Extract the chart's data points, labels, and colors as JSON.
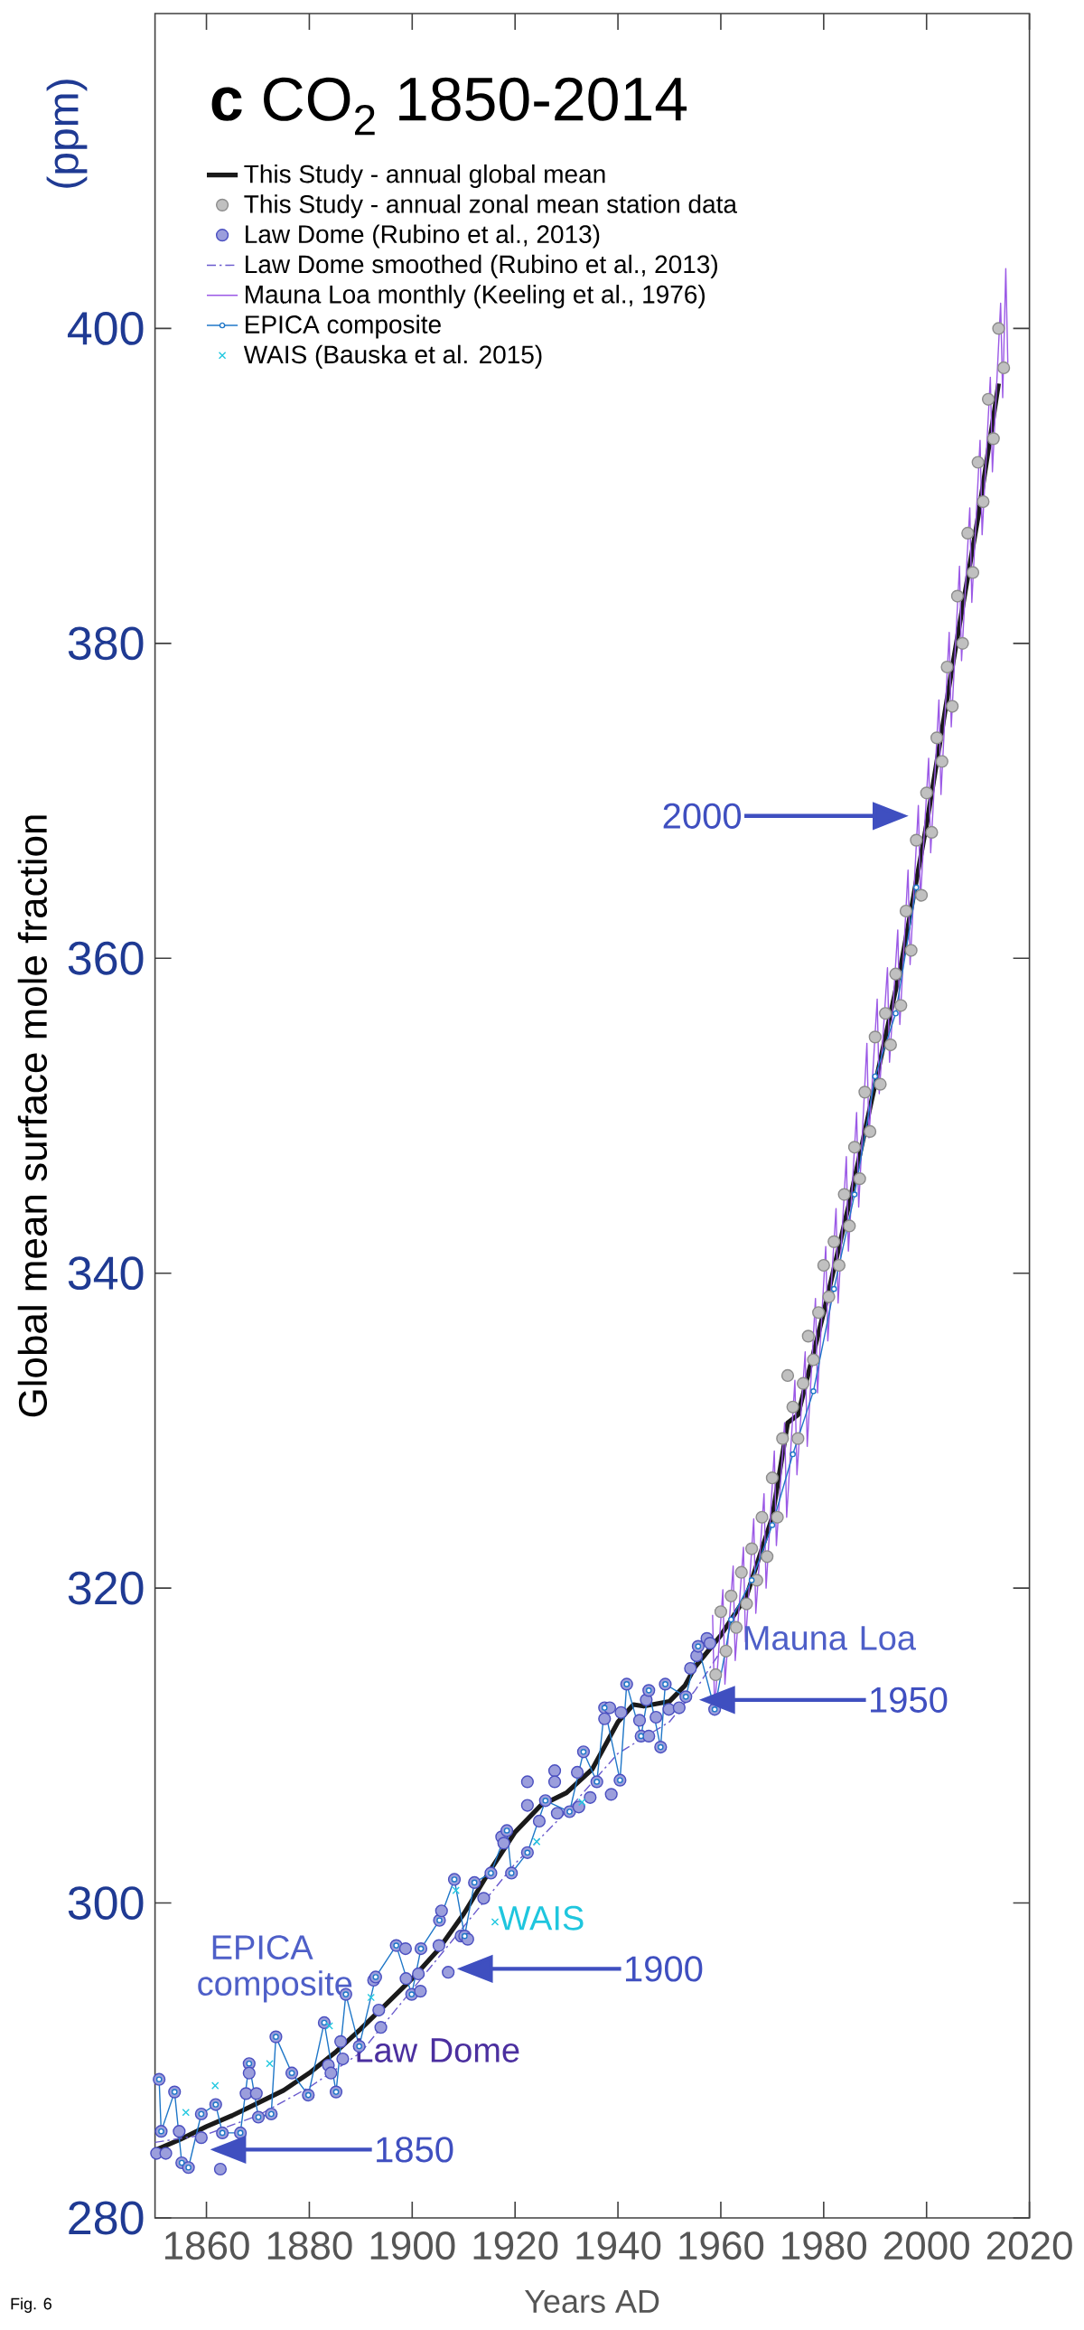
{
  "chart_data": {
    "type": "line",
    "title": "**c** CO$_{2}$ 1850-2014",
    "xlabel": "Years AD",
    "ylabel": "Global mean surface mole fraction",
    "xlim": [
      1850,
      2020
    ],
    "xticks": [
      1860,
      1880,
      1900,
      1920,
      1940,
      1960,
      1980,
      2000,
      2020
    ],
    "ylim": [
      280,
      420
    ],
    "yticks": [
      280,
      300,
      320,
      340,
      360,
      380,
      400
    ],
    "legend": "top left",
    "series": [
      {
        "name": "This Study - annual global mean",
        "color": "#1a1a1a",
        "marker": "none",
        "line_style": "solid",
        "x": [
          1850,
          1855,
          1860,
          1865,
          1870,
          1875,
          1880,
          1885,
          1890,
          1895,
          1900,
          1905,
          1910,
          1915,
          1920,
          1925,
          1930,
          1935,
          1940,
          1943,
          1945,
          1950,
          1953,
          1955,
          1960,
          1965,
          1970,
          1973,
          1975,
          1980,
          1985,
          1990,
          1993,
          1995,
          2000,
          2005,
          2010,
          2014
        ],
        "values": [
          284.3,
          285.0,
          285.8,
          286.5,
          287.3,
          288.1,
          289.2,
          290.5,
          292.0,
          293.6,
          295.2,
          297.0,
          299.3,
          302.0,
          304.5,
          306.2,
          307.0,
          308.5,
          311.5,
          312.6,
          312.5,
          312.8,
          313.8,
          315.0,
          317.0,
          319.5,
          324.5,
          330.5,
          331.0,
          337.5,
          344.5,
          352.0,
          356.5,
          359.5,
          368.5,
          378.5,
          388.0,
          396.5
        ]
      },
      {
        "name": "This Study - annual zonal mean station data",
        "type": "scatter",
        "color": "#8c8c8c",
        "marker": "circle",
        "x": [
          1959,
          1960,
          1961,
          1962,
          1963,
          1964,
          1965,
          1966,
          1967,
          1968,
          1969,
          1970,
          1971,
          1972,
          1973,
          1974,
          1975,
          1976,
          1977,
          1978,
          1979,
          1980,
          1981,
          1982,
          1983,
          1984,
          1985,
          1986,
          1987,
          1988,
          1989,
          1990,
          1991,
          1992,
          1993,
          1994,
          1995,
          1996,
          1997,
          1998,
          1999,
          2000,
          2001,
          2002,
          2003,
          2004,
          2005,
          2006,
          2007,
          2008,
          2009,
          2010,
          2011,
          2012,
          2013,
          2014,
          2015
        ],
        "values": [
          314.5,
          318.5,
          316.0,
          319.5,
          317.5,
          321.0,
          319.0,
          322.5,
          320.5,
          324.5,
          322.0,
          327.0,
          324.5,
          329.5,
          333.5,
          331.5,
          329.5,
          333.0,
          336.0,
          334.5,
          337.5,
          340.5,
          338.5,
          342.0,
          340.5,
          345.0,
          343.0,
          348.0,
          346.0,
          351.5,
          349.0,
          355.0,
          352.0,
          356.5,
          354.5,
          359.0,
          357.0,
          363.0,
          360.5,
          367.5,
          364.0,
          370.5,
          368.0,
          374.0,
          372.5,
          378.5,
          376.0,
          383.0,
          380.0,
          387.0,
          384.5,
          391.5,
          389.0,
          395.5,
          393.0,
          400.0,
          397.5
        ]
      },
      {
        "name": "Law Dome (Rubino et al., 2013)",
        "type": "scatter",
        "color": "#4a4fc0",
        "marker": "circle",
        "x": [
          1850.3,
          1850.8,
          1851.2,
          1852.1,
          1853.8,
          1854.7,
          1855.2,
          1856.5,
          1859.0,
          1859.0,
          1861.8,
          1862.7,
          1863.1,
          1866.6,
          1867.7,
          1868.3,
          1868.3,
          1869.7,
          1870.1,
          1872.6,
          1873.5,
          1876.6,
          1879.8,
          1882.9,
          1883.7,
          1884.2,
          1885.2,
          1886.1,
          1886.5,
          1887.1,
          1889.7,
          1892.5,
          1892.9,
          1893.5,
          1893.9,
          1896.9,
          1898.7,
          1898.8,
          1899.9,
          1901.2,
          1901.6,
          1901.7,
          1905.2,
          1905.3,
          1905.7,
          1907.0,
          1908.2,
          1909.5,
          1910.2,
          1910.8,
          1912.1,
          1913.9,
          1915.3,
          1917.4,
          1917.8,
          1918.4,
          1919.3,
          1922.4,
          1922.4,
          1922.4,
          1924.7,
          1925.9,
          1927.7,
          1927.7,
          1928.2,
          1930.6,
          1932.1,
          1932.4,
          1933.3,
          1934.6,
          1935.9,
          1937.4,
          1937.4,
          1938.4,
          1938.7,
          1940.4,
          1940.6,
          1941.7,
          1944.2,
          1944.5,
          1945.5,
          1946.0,
          1946.0,
          1947.4,
          1948.3,
          1949.2,
          1949.9,
          1951.9,
          1953.2,
          1954.1,
          1955.3,
          1955.6,
          1957.3,
          1957.9,
          1958.8
        ],
        "values": [
          284.1,
          288.8,
          285.5,
          284.1,
          288.0,
          285.5,
          283.5,
          283.2,
          285.1,
          286.6,
          287.2,
          283.1,
          285.4,
          285.4,
          287.9,
          289.8,
          289.2,
          287.9,
          286.4,
          286.6,
          291.5,
          289.2,
          287.8,
          292.4,
          289.7,
          289.2,
          288.0,
          291.2,
          290.1,
          294.2,
          290.9,
          295.1,
          295.3,
          293.2,
          292.1,
          297.3,
          297.1,
          295.2,
          294.2,
          295.5,
          294.4,
          297.1,
          297.3,
          298.9,
          299.5,
          295.6,
          301.5,
          297.9,
          297.9,
          297.7,
          301.3,
          300.3,
          301.9,
          304.2,
          303.8,
          304.6,
          301.9,
          307.7,
          303.2,
          306.2,
          305.2,
          306.5,
          308.4,
          307.7,
          305.7,
          305.8,
          308.3,
          306.1,
          309.6,
          306.7,
          307.7,
          312.4,
          311.7,
          312.4,
          306.9,
          307.8,
          312.1,
          313.9,
          311.6,
          310.6,
          312.9,
          313.5,
          310.6,
          311.8,
          309.9,
          313.9,
          312.3,
          312.4,
          313.1,
          314.9,
          315.7,
          316.3,
          316.8,
          316.5,
          312.3
        ]
      },
      {
        "name": "Law Dome smoothed (Rubino et al., 2013)",
        "color": "#6a5acd",
        "marker": "none",
        "line_style": "dashed",
        "x": [
          1850,
          1860,
          1870,
          1880,
          1890,
          1900,
          1910,
          1920,
          1930,
          1940,
          1950,
          1955,
          1960
        ],
        "values": [
          284.8,
          285.3,
          286.5,
          288.3,
          290.5,
          294.5,
          298.5,
          302.5,
          305.8,
          309.5,
          311.5,
          313.5,
          316.0
        ]
      },
      {
        "name": "Mauna Loa monthly (Keeling et al., 1976)",
        "color": "#9b59e6",
        "marker": "none",
        "line_style": "solid",
        "x": [
          1958.4,
          1958.8,
          1960.4,
          1960.8,
          1962.4,
          1962.8,
          1964.4,
          1964.8,
          1966.4,
          1966.8,
          1968.4,
          1968.8,
          1970.4,
          1970.8,
          1972.4,
          1972.8,
          1974.4,
          1974.8,
          1976.4,
          1976.8,
          1978.4,
          1978.8,
          1980.4,
          1980.8,
          1982.4,
          1982.8,
          1984.4,
          1984.8,
          1986.4,
          1986.8,
          1988.4,
          1988.8,
          1990.4,
          1990.8,
          1992.4,
          1992.8,
          1994.4,
          1994.8,
          1996.4,
          1996.8,
          1998.4,
          1998.8,
          2000.4,
          2000.8,
          2002.4,
          2002.8,
          2004.4,
          2004.8,
          2006.4,
          2006.8,
          2008.4,
          2008.8,
          2010.4,
          2010.8,
          2012.4,
          2012.8,
          2014.4,
          2014.8,
          2015.4,
          2015.8
        ],
        "values": [
          318.3,
          312.3,
          319.9,
          313.9,
          321.4,
          315.4,
          322.6,
          316.6,
          324.4,
          318.4,
          326.0,
          320.0,
          328.7,
          322.7,
          330.5,
          324.5,
          333.2,
          327.2,
          335.0,
          329.0,
          338.4,
          332.4,
          341.7,
          335.7,
          344.1,
          338.1,
          347.4,
          341.4,
          350.2,
          344.2,
          354.6,
          348.6,
          357.4,
          351.4,
          359.4,
          353.4,
          361.8,
          355.8,
          365.6,
          359.6,
          369.7,
          363.7,
          372.7,
          366.7,
          376.4,
          370.4,
          380.7,
          374.7,
          384.9,
          378.9,
          388.6,
          382.6,
          392.9,
          386.9,
          396.9,
          390.9,
          401.6,
          395.6,
          403.8,
          397.8
        ]
      },
      {
        "name": "EPICA composite",
        "color": "#1f77c8",
        "marker": "circle",
        "line_style": "solid",
        "x": [
          1850.8,
          1851.2,
          1853.8,
          1855.2,
          1856.5,
          1859.0,
          1861.8,
          1863.1,
          1866.6,
          1868.3,
          1870.1,
          1872.6,
          1873.5,
          1876.6,
          1879.8,
          1882.9,
          1885.2,
          1887.1,
          1889.7,
          1892.9,
          1896.9,
          1899.9,
          1901.7,
          1905.3,
          1908.2,
          1910.2,
          1912.1,
          1915.3,
          1918.4,
          1919.3,
          1922.4,
          1925.9,
          1930.6,
          1933.3,
          1935.9,
          1937.4,
          1940.4,
          1941.7,
          1944.5,
          1946.0,
          1948.3,
          1949.2,
          1953.2,
          1955.6,
          1958.8,
          1962,
          1966,
          1970,
          1974,
          1978,
          1982,
          1986,
          1990,
          1994,
          1998
        ],
        "values": [
          288.8,
          285.5,
          288.0,
          283.5,
          283.2,
          286.6,
          287.2,
          285.4,
          285.4,
          289.8,
          286.4,
          286.6,
          291.5,
          289.2,
          287.8,
          292.4,
          288.0,
          294.2,
          290.9,
          295.3,
          297.3,
          294.2,
          297.1,
          298.9,
          301.5,
          297.9,
          301.3,
          301.9,
          304.6,
          301.9,
          303.2,
          306.5,
          305.8,
          309.6,
          307.7,
          312.4,
          307.8,
          313.9,
          310.6,
          313.5,
          309.9,
          313.9,
          313.1,
          316.3,
          312.3,
          318.0,
          320.5,
          324.0,
          328.5,
          332.5,
          339.0,
          345.0,
          352.5,
          356.5,
          364.5
        ]
      },
      {
        "name": "WAIS (Bauska et al. 2015)",
        "type": "scatter",
        "color": "#22c8e0",
        "marker": "cross",
        "x": [
          1856.0,
          1861.7,
          1872.3,
          1883.9,
          1892.0,
          1908.5,
          1916.1,
          1924.2,
          1933.0
        ],
        "values": [
          286.7,
          288.4,
          289.8,
          292.2,
          294.0,
          300.8,
          298.8,
          303.9,
          306.4
        ]
      }
    ],
    "annotations": [
      "(ppm)",
      "Fig. 6",
      "EPICA composite",
      "Law Dome",
      "WAIS",
      "Mauna Loa",
      "1850",
      "1900",
      "1950",
      "2000"
    ]
  }
}
